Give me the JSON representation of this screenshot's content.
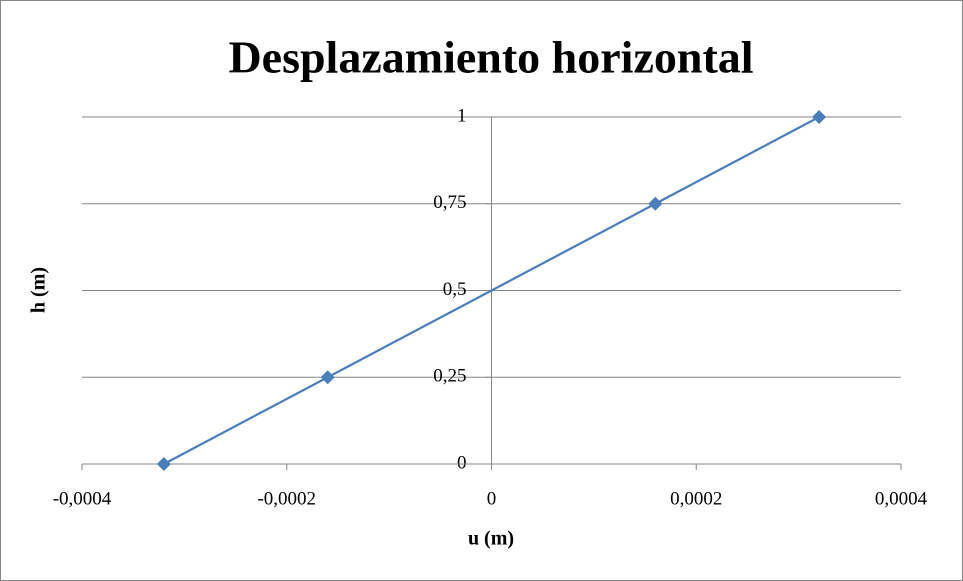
{
  "chart_data": {
    "type": "line",
    "title": "Desplazamiento horizontal",
    "x_label": "u (m)",
    "y_label": "h (m)",
    "x": [
      -0.00032,
      -0.00016,
      0.00016,
      0.00032
    ],
    "values": [
      0,
      0.25,
      0.75,
      1
    ],
    "color": "#4a7ebb",
    "marker": "diamond",
    "xlim": [
      -0.0004,
      0.0004
    ],
    "xticks": [
      {
        "value": -0.0004,
        "label": "-0,0004"
      },
      {
        "value": -0.0002,
        "label": "-0,0002"
      },
      0,
      {
        "value": 0.0002,
        "label": "0,0002"
      },
      {
        "value": 0.0004,
        "label": "0,0004"
      }
    ],
    "ylim": [
      0,
      1
    ],
    "yticks": [
      0,
      {
        "value": 0.25,
        "label": "0,25"
      },
      {
        "value": 0.5,
        "label": "0,5"
      },
      {
        "value": 0.75,
        "label": "0,75"
      },
      1
    ],
    "grid": true
  }
}
